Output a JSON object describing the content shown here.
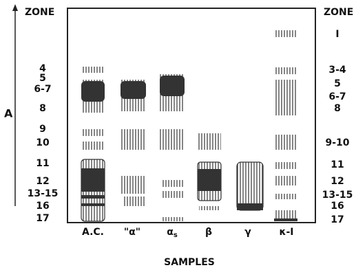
{
  "left_zone_header": "ZONE",
  "right_zone_header": "ZONE",
  "axis_label": "A",
  "left_zones": [
    {
      "label": "4"
    },
    {
      "label": "5"
    },
    {
      "label": "6-7"
    },
    {
      "label": "8"
    },
    {
      "label": "9"
    },
    {
      "label": "10"
    },
    {
      "label": "11"
    },
    {
      "label": "12"
    },
    {
      "label": "13-15"
    },
    {
      "label": "16"
    },
    {
      "label": "17"
    }
  ],
  "right_zones": [
    {
      "label": "I"
    },
    {
      "label": "3-4"
    },
    {
      "label": "5"
    },
    {
      "label": "6-7"
    },
    {
      "label": "8"
    },
    {
      "label": "9-10"
    },
    {
      "label": "11"
    },
    {
      "label": "12"
    },
    {
      "label": "13-15"
    },
    {
      "label": "16"
    },
    {
      "label": "17"
    }
  ],
  "samples": [
    {
      "label": "A.C."
    },
    {
      "label": "\"α\""
    },
    {
      "label": "α",
      "subscript": "s"
    },
    {
      "label": "β"
    },
    {
      "label": "γ"
    },
    {
      "label": "κ-I"
    }
  ],
  "x_axis_label": "SAMPLES"
}
